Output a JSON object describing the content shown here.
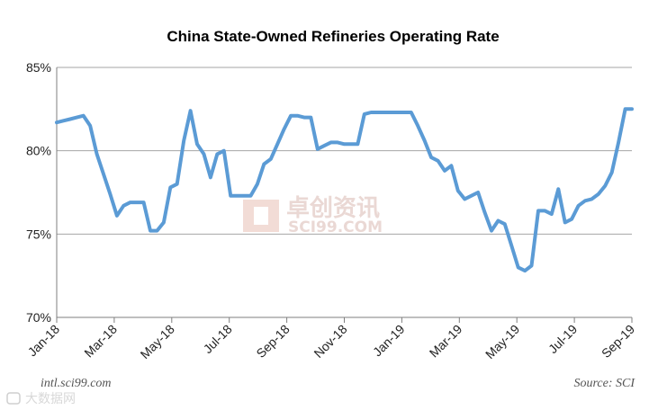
{
  "chart_data": {
    "type": "line",
    "title": "China State-Owned Refineries Operating Rate",
    "xlabel": "",
    "ylabel": "",
    "ylim": [
      70,
      85
    ],
    "yticks": [
      70,
      75,
      80,
      85
    ],
    "ytick_labels": [
      "70%",
      "75%",
      "80%",
      "85%"
    ],
    "xtick_labels": [
      "Jan-18",
      "Mar-18",
      "May-18",
      "Jul-18",
      "Sep-18",
      "Nov-18",
      "Jan-19",
      "Mar-19",
      "May-19",
      "Jul-19",
      "Sep-19"
    ],
    "x_start": "2018-01",
    "x_end": "2019-09",
    "grid": true,
    "series": [
      {
        "name": "Operating Rate",
        "color": "#5b9bd5",
        "values": [
          81.7,
          81.8,
          81.9,
          82.0,
          82.1,
          81.5,
          79.8,
          78.6,
          77.4,
          76.1,
          76.7,
          76.9,
          76.9,
          76.9,
          75.2,
          75.2,
          75.7,
          77.8,
          78.0,
          80.6,
          82.4,
          80.4,
          79.8,
          78.4,
          79.8,
          80.0,
          77.3,
          77.3,
          77.3,
          77.3,
          78.0,
          79.2,
          79.5,
          80.4,
          81.3,
          82.1,
          82.1,
          82.0,
          82.0,
          80.1,
          80.3,
          80.5,
          80.5,
          80.4,
          80.4,
          80.4,
          82.2,
          82.3,
          82.3,
          82.3,
          82.3,
          82.3,
          82.3,
          82.3,
          81.5,
          80.6,
          79.6,
          79.4,
          78.8,
          79.1,
          77.6,
          77.1,
          77.3,
          77.5,
          76.3,
          75.2,
          75.8,
          75.6,
          74.3,
          73.0,
          72.8,
          73.1,
          76.4,
          76.4,
          76.2,
          77.7,
          75.7,
          75.9,
          76.7,
          77.0,
          77.1,
          77.4,
          77.9,
          78.7,
          80.5,
          82.5,
          82.5
        ]
      }
    ]
  },
  "watermark": {
    "text_cn": "卓创资讯",
    "text_en": "SCI99.COM"
  },
  "footer": {
    "left": "intl.sci99.com",
    "right": "Source: SCI",
    "logo_text": "大数据网"
  },
  "colors": {
    "line": "#5b9bd5",
    "grid": "#a6a6a6",
    "axis": "#7f7f7f",
    "watermark_logo": "#f2dcd6"
  }
}
